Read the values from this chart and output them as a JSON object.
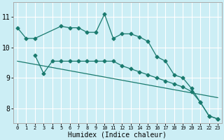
{
  "xlabel": "Humidex (Indice chaleur)",
  "background_color": "#cceef5",
  "grid_color": "#ffffff",
  "line_color": "#1a7a6e",
  "x_ticks": [
    0,
    1,
    2,
    3,
    4,
    5,
    6,
    7,
    8,
    9,
    10,
    11,
    12,
    13,
    14,
    15,
    16,
    17,
    18,
    19,
    20,
    21,
    22,
    23
  ],
  "ylim": [
    7.5,
    11.5
  ],
  "xlim": [
    -0.5,
    23.5
  ],
  "yticks": [
    8,
    9,
    10,
    11
  ],
  "series1_x": [
    0,
    1,
    2,
    5,
    6,
    7,
    8,
    9,
    10,
    11,
    12,
    13,
    14,
    15,
    16,
    17,
    18,
    19,
    20,
    21,
    22,
    23
  ],
  "series1_y": [
    10.65,
    10.3,
    10.3,
    10.7,
    10.65,
    10.65,
    10.5,
    10.5,
    11.1,
    10.3,
    10.45,
    10.45,
    10.35,
    10.2,
    9.7,
    9.55,
    9.1,
    9.0,
    8.65,
    8.2,
    7.75,
    7.65
  ],
  "series2_x": [
    2,
    3,
    4,
    5,
    6,
    7,
    8,
    9,
    10,
    11,
    12,
    13,
    14,
    15,
    16,
    17,
    18,
    19,
    20,
    21,
    22,
    23
  ],
  "series2_y": [
    9.75,
    9.15,
    9.55,
    9.55,
    9.55,
    9.55,
    9.55,
    9.55,
    9.55,
    9.55,
    9.4,
    9.3,
    9.2,
    9.1,
    9.0,
    8.9,
    8.8,
    8.7,
    8.55,
    8.2,
    7.75,
    7.65
  ],
  "series3_x": [
    0,
    23
  ],
  "series3_y": [
    9.55,
    8.35
  ]
}
